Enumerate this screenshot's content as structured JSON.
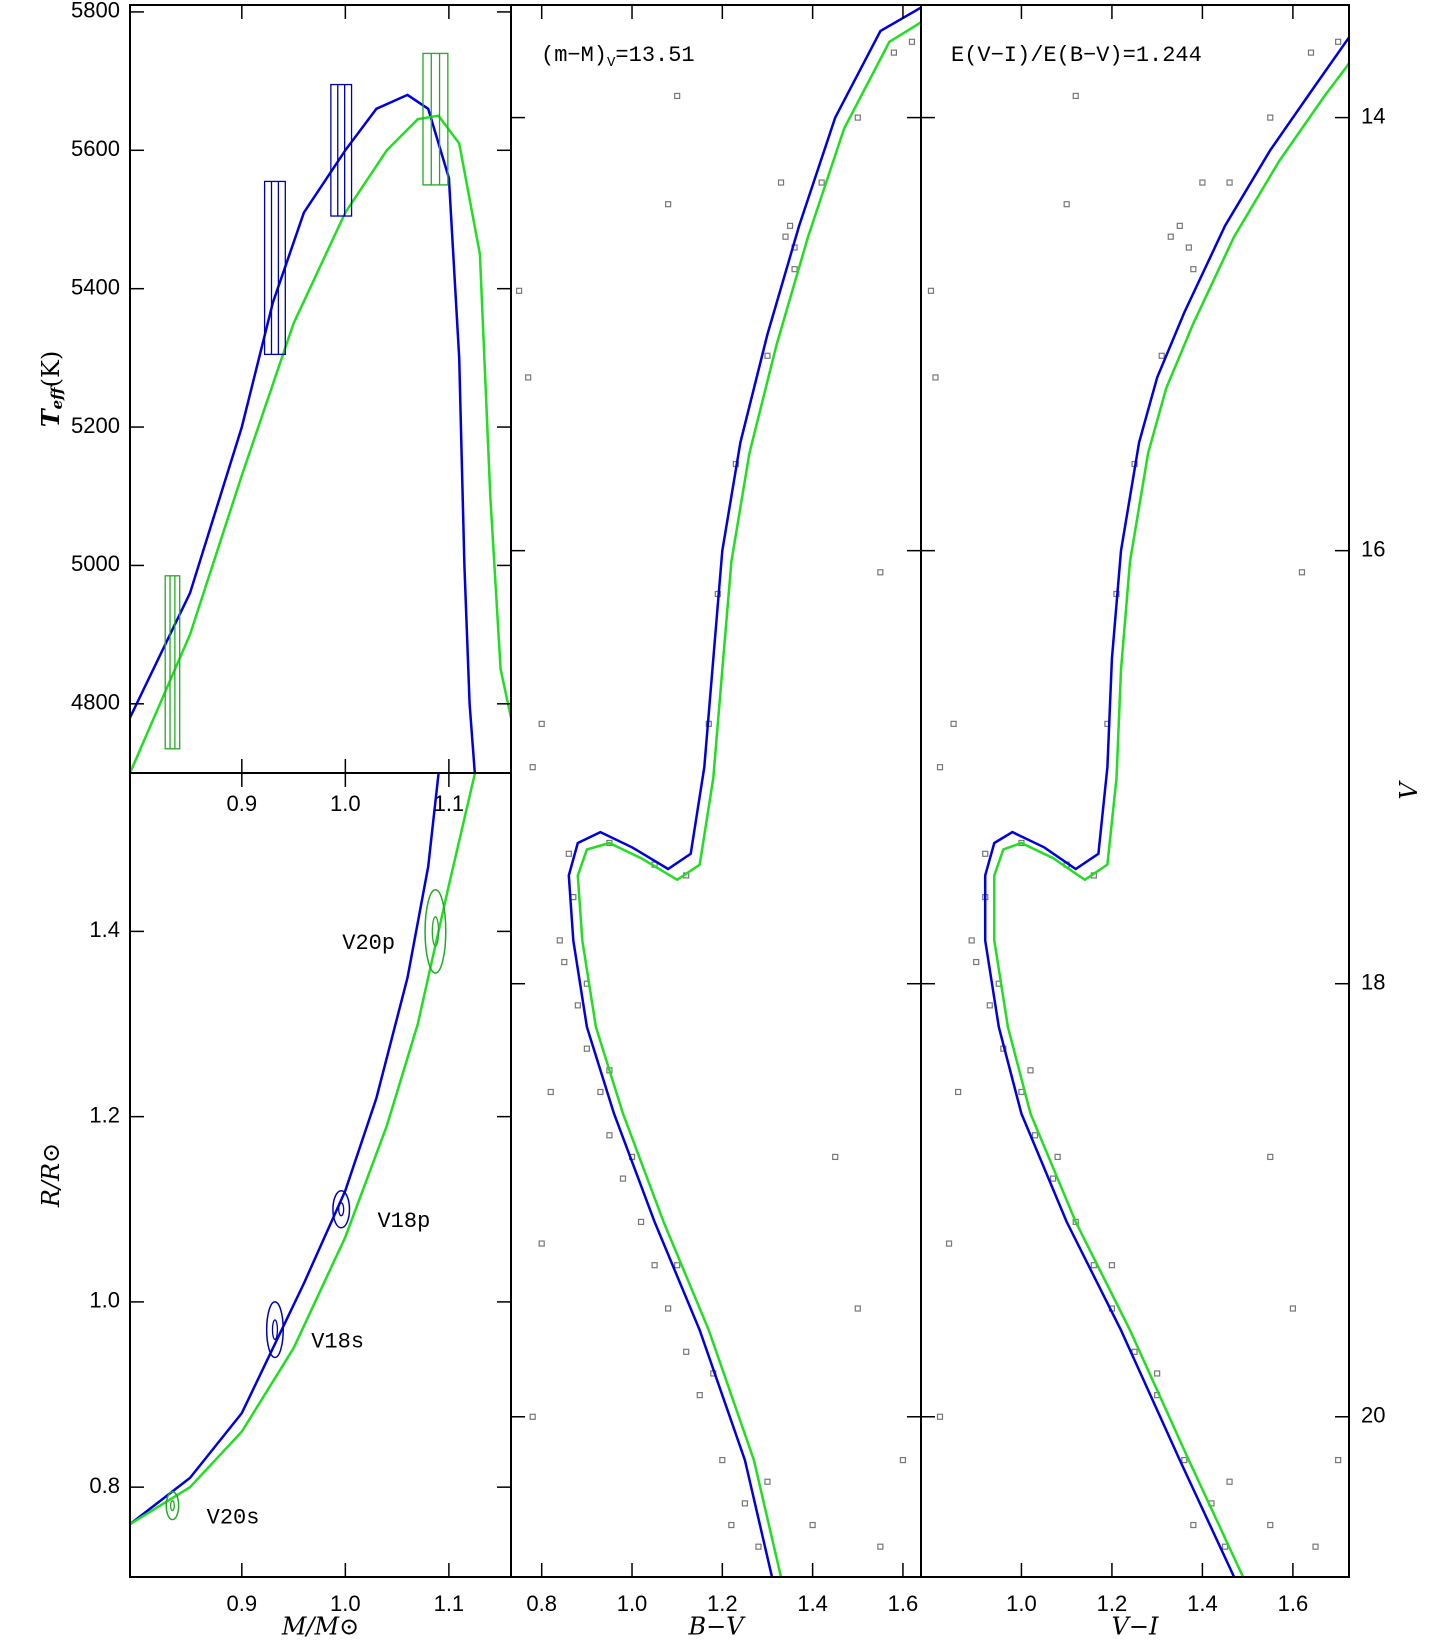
{
  "chart_data": [
    {
      "type": "line",
      "ylabel": "T",
      "ylabel_sub": "eff",
      "ylabel_unit": "(K)",
      "xlim": [
        0.792,
        1.16
      ],
      "ylim": [
        4700,
        5810
      ],
      "xticks": [
        0.9,
        {
          "value": 1,
          "label": "1.0"
        },
        1.1
      ],
      "yticks": [
        4800,
        5000,
        5200,
        5400,
        5600,
        5800
      ],
      "series": [
        {
          "color": "#0000dd",
          "x": [
            0.792,
            0.85,
            0.9,
            0.93,
            0.96,
            1.0,
            1.03,
            1.06,
            1.08,
            1.1,
            1.11,
            1.115,
            1.12,
            1.125
          ],
          "values": [
            4780,
            4960,
            5200,
            5380,
            5510,
            5600,
            5660,
            5680,
            5660,
            5560,
            5300,
            5000,
            4800,
            4700
          ]
        },
        {
          "color": "#22dd22",
          "x": [
            0.792,
            0.85,
            0.9,
            0.95,
            1.0,
            1.04,
            1.07,
            1.09,
            1.11,
            1.13,
            1.14,
            1.15,
            1.16
          ],
          "values": [
            4700,
            4900,
            5130,
            5350,
            5510,
            5600,
            5645,
            5650,
            5610,
            5450,
            5100,
            4850,
            4780
          ]
        }
      ],
      "boxes": [
        {
          "color": "#22aa22",
          "x": 0.833,
          "xerr": 0.007,
          "y": 4860,
          "yerr": 125
        },
        {
          "color": "#0000aa",
          "x": 0.932,
          "xerr": 0.01,
          "y": 5430,
          "yerr": 125
        },
        {
          "color": "#0000aa",
          "x": 0.996,
          "xerr": 0.01,
          "y": 5600,
          "yerr": 95
        },
        {
          "color": "#22aa22",
          "x": 1.087,
          "xerr": 0.012,
          "y": 5645,
          "yerr": 95
        }
      ]
    },
    {
      "type": "line",
      "xlabel": "M/M⊙",
      "ylabel": "R/R⊙",
      "xlim": [
        0.792,
        1.16
      ],
      "ylim": [
        0.703,
        1.571
      ],
      "xticks": [
        0.9,
        {
          "value": 1,
          "label": "1.0"
        },
        1.1
      ],
      "yticks": [
        0.8,
        {
          "value": 1,
          "label": "1.0"
        },
        1.2,
        1.4
      ],
      "series": [
        {
          "color": "#0000dd",
          "x": [
            0.792,
            0.85,
            0.9,
            0.93,
            0.96,
            1.0,
            1.03,
            1.06,
            1.08,
            1.09
          ],
          "values": [
            0.76,
            0.81,
            0.88,
            0.95,
            1.02,
            1.12,
            1.22,
            1.35,
            1.47,
            1.57
          ]
        },
        {
          "color": "#22dd22",
          "x": [
            0.792,
            0.85,
            0.9,
            0.95,
            1.0,
            1.04,
            1.07,
            1.1,
            1.125
          ],
          "values": [
            0.76,
            0.8,
            0.86,
            0.95,
            1.07,
            1.19,
            1.3,
            1.45,
            1.57
          ]
        }
      ],
      "ellipses": [
        {
          "label": "V20p",
          "color": "#22aa22",
          "x": 1.087,
          "xerr": 0.01,
          "y": 1.4,
          "yerr": 0.045
        },
        {
          "label": "V18p",
          "color": "#0000aa",
          "x": 0.996,
          "xerr": 0.008,
          "y": 1.1,
          "yerr": 0.02
        },
        {
          "label": "V18s",
          "color": "#0000aa",
          "x": 0.932,
          "xerr": 0.008,
          "y": 0.97,
          "yerr": 0.03
        },
        {
          "label": "V20s",
          "color": "#22aa22",
          "x": 0.833,
          "xerr": 0.006,
          "y": 0.78,
          "yerr": 0.015
        }
      ]
    },
    {
      "type": "scatter",
      "xlabel": "B−V",
      "annotation": "(m−M)",
      "annotation_sub": "V",
      "annotation_value": "=13.51",
      "xlim": [
        0.732,
        1.64
      ],
      "ylim": [
        20.74,
        13.48
      ],
      "ytick_labels": false,
      "xticks": [
        0.8,
        {
          "value": 1,
          "label": "1.0"
        },
        1.2,
        1.4,
        1.6
      ],
      "yticks": [
        14,
        16,
        18,
        20
      ],
      "points": {
        "color": "#777777",
        "x": [
          0.87,
          0.85,
          0.88,
          0.84,
          0.9,
          0.93,
          0.95,
          0.98,
          1.02,
          1.05,
          1.08,
          1.12,
          1.15,
          1.2,
          1.25,
          1.28,
          0.95,
          1.0,
          1.1,
          1.18,
          1.3,
          1.22,
          0.9,
          0.82,
          0.8,
          0.78,
          1.5,
          1.6,
          1.55,
          1.4,
          0.86,
          0.95,
          1.05,
          1.12,
          1.17,
          1.19,
          1.23,
          1.3,
          1.36,
          1.42,
          1.5,
          1.58,
          1.62,
          1.33,
          0.78,
          0.8,
          0.77,
          0.75,
          1.45,
          1.55,
          1.35,
          1.34,
          1.36,
          1.1,
          1.08
        ],
        "values": [
          17.6,
          17.9,
          18.1,
          17.8,
          18.3,
          18.5,
          18.7,
          18.9,
          19.1,
          19.3,
          19.5,
          19.7,
          19.9,
          20.2,
          20.4,
          20.6,
          18.4,
          18.8,
          19.3,
          19.8,
          20.3,
          20.5,
          18.0,
          18.5,
          19.2,
          20.0,
          19.5,
          20.2,
          20.6,
          20.5,
          17.4,
          17.35,
          17.45,
          17.5,
          16.8,
          16.2,
          15.6,
          15.1,
          14.7,
          14.3,
          14.0,
          13.7,
          13.65,
          14.3,
          17.0,
          16.8,
          15.2,
          14.8,
          18.8,
          16.1,
          14.5,
          14.55,
          14.6,
          13.9,
          14.4
        ]
      },
      "series": [
        {
          "color": "#0000dd",
          "x": [
            1.31,
            1.25,
            1.15,
            1.05,
            0.96,
            0.9,
            0.87,
            0.86,
            0.88,
            0.93,
            1.0,
            1.08,
            1.13,
            1.16,
            1.18,
            1.2,
            1.24,
            1.3,
            1.37,
            1.45,
            1.55,
            1.65
          ],
          "values": [
            20.74,
            20.2,
            19.6,
            19.1,
            18.6,
            18.2,
            17.8,
            17.5,
            17.35,
            17.3,
            17.37,
            17.47,
            17.4,
            17.0,
            16.5,
            16.0,
            15.5,
            15.0,
            14.5,
            14.0,
            13.6,
            13.48
          ]
        },
        {
          "color": "#22dd22",
          "x": [
            1.33,
            1.27,
            1.17,
            1.07,
            0.98,
            0.92,
            0.89,
            0.88,
            0.9,
            0.95,
            1.02,
            1.1,
            1.15,
            1.18,
            1.2,
            1.22,
            1.26,
            1.32,
            1.39,
            1.47,
            1.57,
            1.64
          ],
          "values": [
            20.74,
            20.2,
            19.6,
            19.1,
            18.6,
            18.2,
            17.8,
            17.5,
            17.38,
            17.35,
            17.42,
            17.52,
            17.45,
            17.05,
            16.55,
            16.05,
            15.55,
            15.05,
            14.55,
            14.05,
            13.65,
            13.56
          ]
        }
      ]
    },
    {
      "type": "scatter",
      "xlabel": "V−I",
      "ylabel": "V",
      "annotation": "E(V−I)/E(B−V)=1.244",
      "xlim": [
        0.778,
        1.724
      ],
      "ylim": [
        20.74,
        13.48
      ],
      "ytick_labels": true,
      "xticks": [
        {
          "value": 1,
          "label": "1.0"
        },
        1.2,
        1.4,
        1.6
      ],
      "yticks": [
        14,
        16,
        18,
        20
      ],
      "points": {
        "color": "#777777",
        "x": [
          0.92,
          0.9,
          0.93,
          0.89,
          0.96,
          1.0,
          1.03,
          1.07,
          1.12,
          1.16,
          1.2,
          1.25,
          1.3,
          1.36,
          1.42,
          1.45,
          1.02,
          1.08,
          1.2,
          1.3,
          1.46,
          1.38,
          0.95,
          0.86,
          0.84,
          0.82,
          1.6,
          1.7,
          1.65,
          1.55,
          0.92,
          1.0,
          1.1,
          1.16,
          1.19,
          1.21,
          1.25,
          1.31,
          1.38,
          1.46,
          1.55,
          1.64,
          1.7,
          1.4,
          0.82,
          0.85,
          0.81,
          0.8,
          1.55,
          1.62,
          1.35,
          1.33,
          1.37,
          1.12,
          1.1
        ],
        "values": [
          17.6,
          17.9,
          18.1,
          17.8,
          18.3,
          18.5,
          18.7,
          18.9,
          19.1,
          19.3,
          19.5,
          19.7,
          19.9,
          20.2,
          20.4,
          20.6,
          18.4,
          18.8,
          19.3,
          19.8,
          20.3,
          20.5,
          18.0,
          18.5,
          19.2,
          20.0,
          19.5,
          20.2,
          20.6,
          20.5,
          17.4,
          17.35,
          17.45,
          17.5,
          16.8,
          16.2,
          15.6,
          15.1,
          14.7,
          14.3,
          14.0,
          13.7,
          13.65,
          14.3,
          17.0,
          16.8,
          15.2,
          14.8,
          18.8,
          16.1,
          14.5,
          14.55,
          14.6,
          13.9,
          14.4
        ]
      },
      "series": [
        {
          "color": "#0000dd",
          "x": [
            1.47,
            1.35,
            1.22,
            1.1,
            1.0,
            0.95,
            0.92,
            0.92,
            0.94,
            0.98,
            1.05,
            1.12,
            1.17,
            1.19,
            1.2,
            1.22,
            1.26,
            1.3,
            1.36,
            1.45,
            1.55,
            1.65,
            1.724
          ],
          "values": [
            20.74,
            20.2,
            19.6,
            19.1,
            18.6,
            18.2,
            17.8,
            17.5,
            17.35,
            17.3,
            17.37,
            17.47,
            17.4,
            17.0,
            16.5,
            16.0,
            15.5,
            15.2,
            14.9,
            14.5,
            14.15,
            13.85,
            13.63
          ]
        },
        {
          "color": "#22dd22",
          "x": [
            1.49,
            1.37,
            1.24,
            1.12,
            1.02,
            0.97,
            0.94,
            0.94,
            0.96,
            1.0,
            1.07,
            1.14,
            1.19,
            1.21,
            1.22,
            1.24,
            1.28,
            1.32,
            1.38,
            1.47,
            1.57,
            1.67,
            1.724
          ],
          "values": [
            20.74,
            20.2,
            19.6,
            19.1,
            18.6,
            18.2,
            17.8,
            17.5,
            17.38,
            17.35,
            17.42,
            17.52,
            17.45,
            17.05,
            16.55,
            16.05,
            15.55,
            15.25,
            14.95,
            14.55,
            14.2,
            13.9,
            13.75
          ]
        }
      ]
    }
  ]
}
